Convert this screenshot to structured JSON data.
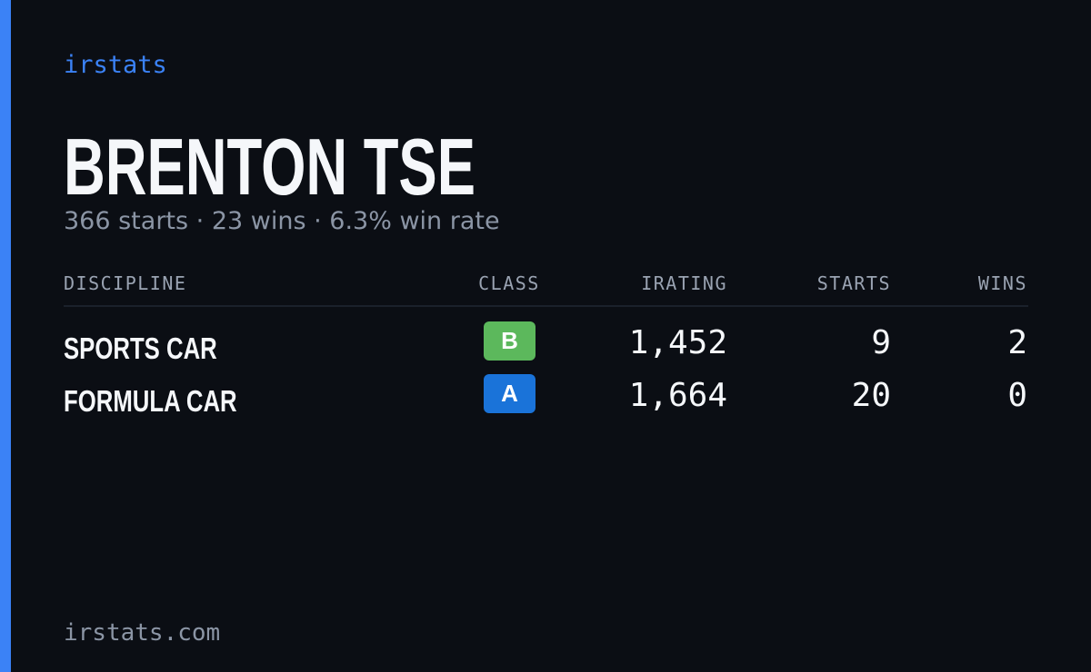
{
  "brand": "irstats",
  "driver": {
    "name": "BRENTON TSE",
    "summary": "366 starts · 23 wins · 6.3% win rate"
  },
  "table": {
    "headers": [
      "DISCIPLINE",
      "CLASS",
      "IRATING",
      "STARTS",
      "WINS"
    ],
    "rows": [
      [
        "SPORTS CAR",
        "B",
        "1,452",
        9,
        2
      ],
      [
        "FORMULA CAR",
        "A",
        "1,664",
        20,
        0
      ]
    ],
    "class_colors": {
      "A": "#1a73d9",
      "B": "#5cb85c"
    }
  },
  "footer": "irstats.com"
}
